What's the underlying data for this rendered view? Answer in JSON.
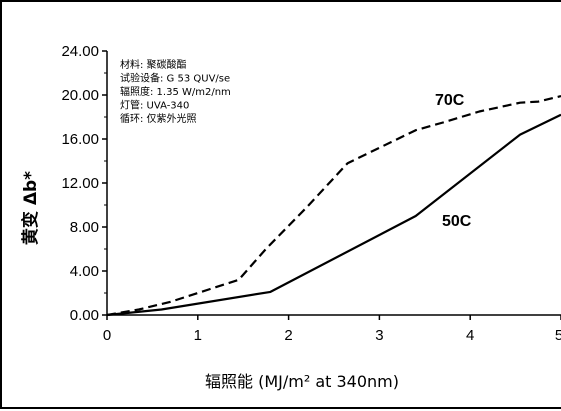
{
  "chart_data": {
    "type": "line",
    "xlabel": "辐照能 (MJ/m² at 340nm)",
    "ylabel": "黄变 Δb*",
    "xlim": [
      0,
      5
    ],
    "ylim": [
      0,
      24
    ],
    "x_ticks": [
      "0",
      "1",
      "2",
      "3",
      "4",
      "5"
    ],
    "y_ticks": [
      "0.00",
      "4.00",
      "8.00",
      "12.00",
      "16.00",
      "20.00",
      "24.00"
    ],
    "annotation": [
      "材料:  聚碳酸酯",
      "试验设备:  G 53  QUV/se",
      "辐照度: 1.35 W/m2/nm",
      "灯管: UVA-340",
      "循环: 仅紫外光照"
    ],
    "grid": false,
    "series": [
      {
        "name": "70C",
        "dash": "dashed",
        "x": [
          0,
          0.35,
          0.7,
          1.0,
          1.45,
          1.75,
          2.2,
          2.65,
          3.0,
          3.4,
          3.7,
          4.1,
          4.55,
          4.75,
          5.0
        ],
        "y": [
          0,
          0.5,
          1.2,
          2.0,
          3.2,
          6.0,
          9.8,
          13.8,
          15.2,
          16.8,
          17.5,
          18.5,
          19.3,
          19.4,
          19.9
        ]
      },
      {
        "name": "50C",
        "dash": "solid",
        "x": [
          0,
          0.6,
          1.8,
          3.4,
          4.55,
          5.0
        ],
        "y": [
          0,
          0.5,
          2.1,
          9.0,
          16.4,
          18.2
        ]
      }
    ]
  }
}
